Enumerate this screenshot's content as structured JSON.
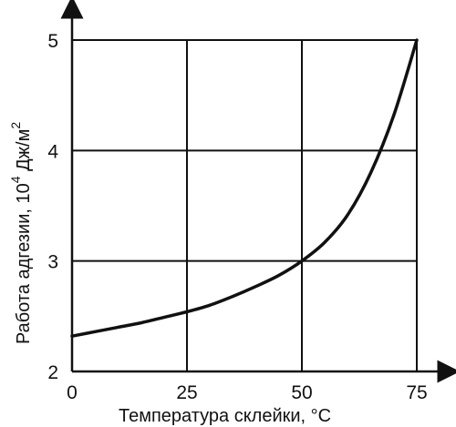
{
  "chart_data": {
    "type": "line",
    "title": "",
    "xlabel": "Температура склейки, °C",
    "ylabel": {
      "main": "Работа адгезии, 10",
      "exp": "4",
      "unit": " Дж/м",
      "unit_exp": "2"
    },
    "xlim": [
      0,
      75
    ],
    "ylim": [
      2,
      5
    ],
    "x_ticks": [
      "0",
      "25",
      "50",
      "75"
    ],
    "y_ticks": [
      "2",
      "3",
      "4",
      "5"
    ],
    "grid": true,
    "series": [
      {
        "x": [
          0,
          5,
          10,
          15,
          20,
          25,
          30,
          35,
          40,
          45,
          50,
          55,
          60,
          65,
          70,
          75
        ],
        "y": [
          2.32,
          2.36,
          2.4,
          2.44,
          2.49,
          2.54,
          2.6,
          2.68,
          2.77,
          2.87,
          3.0,
          3.17,
          3.42,
          3.8,
          4.32,
          5.0
        ]
      }
    ]
  }
}
